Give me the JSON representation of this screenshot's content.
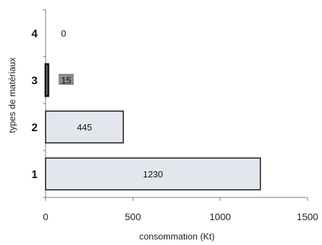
{
  "chart_data": {
    "type": "bar",
    "orientation": "horizontal",
    "title": "",
    "xlabel": "consommation (Kt)",
    "ylabel": "types de matériaux",
    "categories": [
      "1",
      "2",
      "3",
      "4"
    ],
    "values": [
      1230,
      445,
      15,
      0
    ],
    "data_labels": [
      "1230",
      "445",
      "15",
      "0"
    ],
    "xlim": [
      0,
      1500
    ],
    "x_ticks": [
      "0",
      "500",
      "1000",
      "1500"
    ],
    "x_tick_values": [
      0,
      500,
      1000,
      1500
    ],
    "grid": false,
    "legend": "none",
    "colors": {
      "bar_fill": "#e4e6ee",
      "bar_stroke": "#111111",
      "axis": "#777777",
      "label_highlight": "#8a8a8a"
    }
  }
}
